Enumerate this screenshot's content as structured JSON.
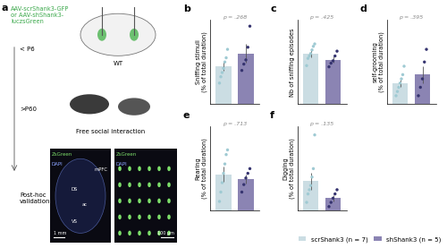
{
  "diagram": {
    "panel": "a",
    "injection": "AAV-scrShank3-GFP\nor AAV-shShank3-\nluczsGreen",
    "steps": [
      "< P6",
      ">P60",
      "Post-hoc\nvalidation"
    ],
    "brain_label": "WT",
    "behavior": "Free social interaction",
    "histology": {
      "stain_top": "ZsGreen",
      "stain_bottom": "DAPI",
      "regions": [
        "mPFC",
        "DS",
        "ac",
        "VS"
      ],
      "scale_bars": [
        "1 mm",
        "100 µm"
      ]
    }
  },
  "groups": [
    {
      "name": "scrShank3 (n = 7)",
      "color": "#cbdde3"
    },
    {
      "name": "shShank3 (n = 5)",
      "color": "#8b84b3"
    }
  ],
  "legend": "lower right",
  "chart_data": [
    {
      "type": "bar",
      "panel": "b",
      "y_label": "Sniffing stimuli\n(% of total duration)",
      "annotation": "p = .268",
      "ylim": [
        0,
        40
      ],
      "tick_labels": false,
      "values": [
        18,
        24
      ],
      "errors": [
        2.0,
        4.5
      ],
      "points": [
        [
          10,
          13,
          15,
          17,
          20,
          22,
          26
        ],
        [
          16,
          19,
          21,
          27,
          37
        ]
      ]
    },
    {
      "type": "bar",
      "panel": "c",
      "y_label": "Nb of sniffing episodes",
      "annotation": "p = .425",
      "ylim": [
        0,
        70
      ],
      "tick_labels": false,
      "values": [
        42,
        37
      ],
      "errors": [
        3.0,
        2.5
      ],
      "points": [
        [
          32,
          38,
          40,
          42,
          45,
          48,
          50
        ],
        [
          31,
          34,
          36,
          40,
          44
        ]
      ]
    },
    {
      "type": "bar",
      "panel": "d",
      "y_label": "self-grooming\n(% of total duration)",
      "annotation": "p = .395",
      "ylim": [
        0,
        20
      ],
      "tick_labels": false,
      "values": [
        5,
        7
      ],
      "errors": [
        0.9,
        2.0
      ],
      "points": [
        [
          2,
          3,
          4,
          5,
          6,
          7,
          9
        ],
        [
          2,
          4,
          6,
          10,
          13
        ]
      ]
    },
    {
      "type": "bar",
      "panel": "e",
      "y_label": "Rearing\n(% of total duration)",
      "annotation": "p = .713",
      "ylim": [
        0,
        90
      ],
      "tick_labels": false,
      "values": [
        39,
        34
      ],
      "errors": [
        8.0,
        5.0
      ],
      "points": [
        [
          10,
          20,
          30,
          40,
          50,
          60,
          65
        ],
        [
          20,
          28,
          35,
          40,
          45
        ]
      ]
    },
    {
      "type": "bar",
      "panel": "f",
      "y_label": "Digging\n(% of total duration)",
      "annotation": "p = .135",
      "ylim": [
        0,
        20
      ],
      "tick_labels": false,
      "values": [
        7,
        3
      ],
      "errors": [
        2.0,
        0.8
      ],
      "points": [
        [
          2,
          4,
          5,
          6,
          8,
          10,
          18
        ],
        [
          1,
          2,
          3,
          4,
          5
        ]
      ]
    }
  ]
}
